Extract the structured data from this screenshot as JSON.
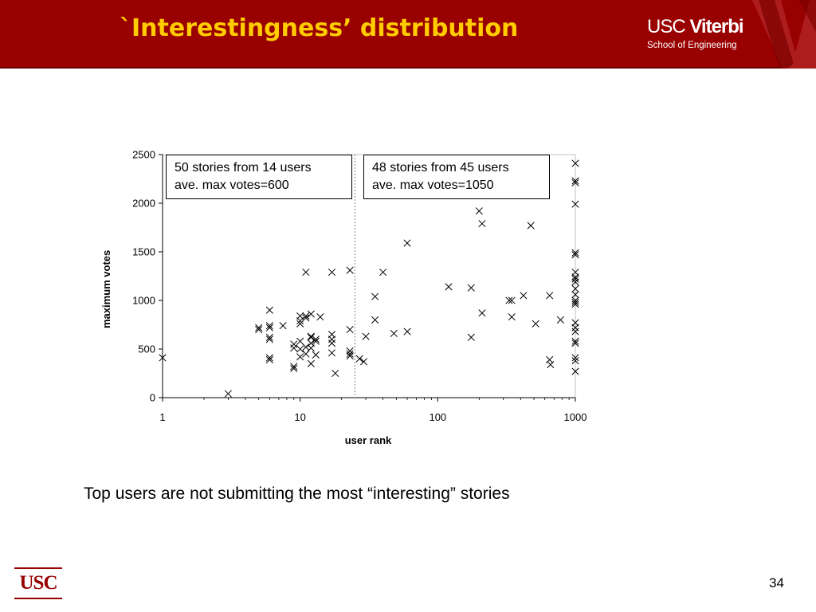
{
  "slide": {
    "title": "`Interestingness’ distribution",
    "caption": "Top users are not submitting the most “interesting” stories",
    "page_number": "34"
  },
  "logos": {
    "header_usc": "USC",
    "header_viterbi": "Viterbi",
    "header_school": "School of Engineering",
    "footer_usc": "USC"
  },
  "colors": {
    "header_background": "#990000",
    "title_text": "#ffcc00",
    "marker": "#000000"
  },
  "chart_data": {
    "type": "scatter",
    "marker": "x",
    "xscale": "log",
    "xlabel": "user rank",
    "ylabel": "maximum votes",
    "xlim": [
      1,
      1000
    ],
    "ylim": [
      0,
      2500
    ],
    "xticks": [
      1,
      10,
      100,
      1000
    ],
    "xtick_labels": [
      "1",
      "10",
      "100",
      "1000"
    ],
    "yticks": [
      0,
      500,
      1000,
      1500,
      2000,
      2500
    ],
    "ytick_labels": [
      "0",
      "500",
      "1000",
      "1500",
      "2000",
      "2500"
    ],
    "grid": false,
    "divider_x": 25,
    "annotations": [
      {
        "line1": "50 stories from 14 users",
        "line2": "ave. max votes=600"
      },
      {
        "line1": "48 stories from 45 users",
        "line2": "ave. max votes=1050"
      }
    ],
    "points": [
      [
        1,
        410
      ],
      [
        3,
        40
      ],
      [
        5,
        720
      ],
      [
        5,
        700
      ],
      [
        6,
        900
      ],
      [
        6,
        740
      ],
      [
        6,
        720
      ],
      [
        6,
        620
      ],
      [
        6,
        600
      ],
      [
        6,
        410
      ],
      [
        6,
        390
      ],
      [
        7.5,
        740
      ],
      [
        9,
        550
      ],
      [
        9,
        510
      ],
      [
        9,
        320
      ],
      [
        9,
        300
      ],
      [
        10,
        840
      ],
      [
        10,
        790
      ],
      [
        10,
        760
      ],
      [
        10,
        580
      ],
      [
        10,
        500
      ],
      [
        10,
        420
      ],
      [
        11,
        1290
      ],
      [
        11,
        840
      ],
      [
        11,
        820
      ],
      [
        11,
        520
      ],
      [
        11,
        450
      ],
      [
        12,
        860
      ],
      [
        12,
        630
      ],
      [
        12,
        620
      ],
      [
        12,
        560
      ],
      [
        12,
        510
      ],
      [
        12,
        350
      ],
      [
        13,
        600
      ],
      [
        13,
        580
      ],
      [
        13,
        440
      ],
      [
        14,
        830
      ],
      [
        17,
        1290
      ],
      [
        17,
        650
      ],
      [
        17,
        600
      ],
      [
        17,
        560
      ],
      [
        17,
        460
      ],
      [
        18,
        250
      ],
      [
        23,
        1310
      ],
      [
        23,
        700
      ],
      [
        23,
        480
      ],
      [
        23,
        450
      ],
      [
        23,
        430
      ],
      [
        27,
        400
      ],
      [
        29,
        370
      ],
      [
        30,
        630
      ],
      [
        35,
        1040
      ],
      [
        35,
        800
      ],
      [
        40,
        1290
      ],
      [
        48,
        660
      ],
      [
        60,
        1590
      ],
      [
        60,
        680
      ],
      [
        120,
        1140
      ],
      [
        175,
        1130
      ],
      [
        175,
        620
      ],
      [
        200,
        1920
      ],
      [
        210,
        1790
      ],
      [
        210,
        870
      ],
      [
        330,
        1000
      ],
      [
        345,
        1000
      ],
      [
        345,
        830
      ],
      [
        420,
        1050
      ],
      [
        475,
        1770
      ],
      [
        515,
        760
      ],
      [
        650,
        1050
      ],
      [
        650,
        390
      ],
      [
        660,
        340
      ],
      [
        780,
        800
      ],
      [
        1000,
        2410
      ],
      [
        1000,
        2230
      ],
      [
        1000,
        2210
      ],
      [
        1000,
        1990
      ],
      [
        1000,
        1490
      ],
      [
        1000,
        1470
      ],
      [
        1000,
        1290
      ],
      [
        1000,
        1240
      ],
      [
        1000,
        1220
      ],
      [
        1000,
        1190
      ],
      [
        1000,
        1120
      ],
      [
        1000,
        1060
      ],
      [
        1000,
        1000
      ],
      [
        1000,
        980
      ],
      [
        1000,
        960
      ],
      [
        1000,
        770
      ],
      [
        1000,
        720
      ],
      [
        1000,
        680
      ],
      [
        1000,
        580
      ],
      [
        1000,
        560
      ],
      [
        1000,
        410
      ],
      [
        1000,
        380
      ],
      [
        1000,
        270
      ]
    ]
  }
}
